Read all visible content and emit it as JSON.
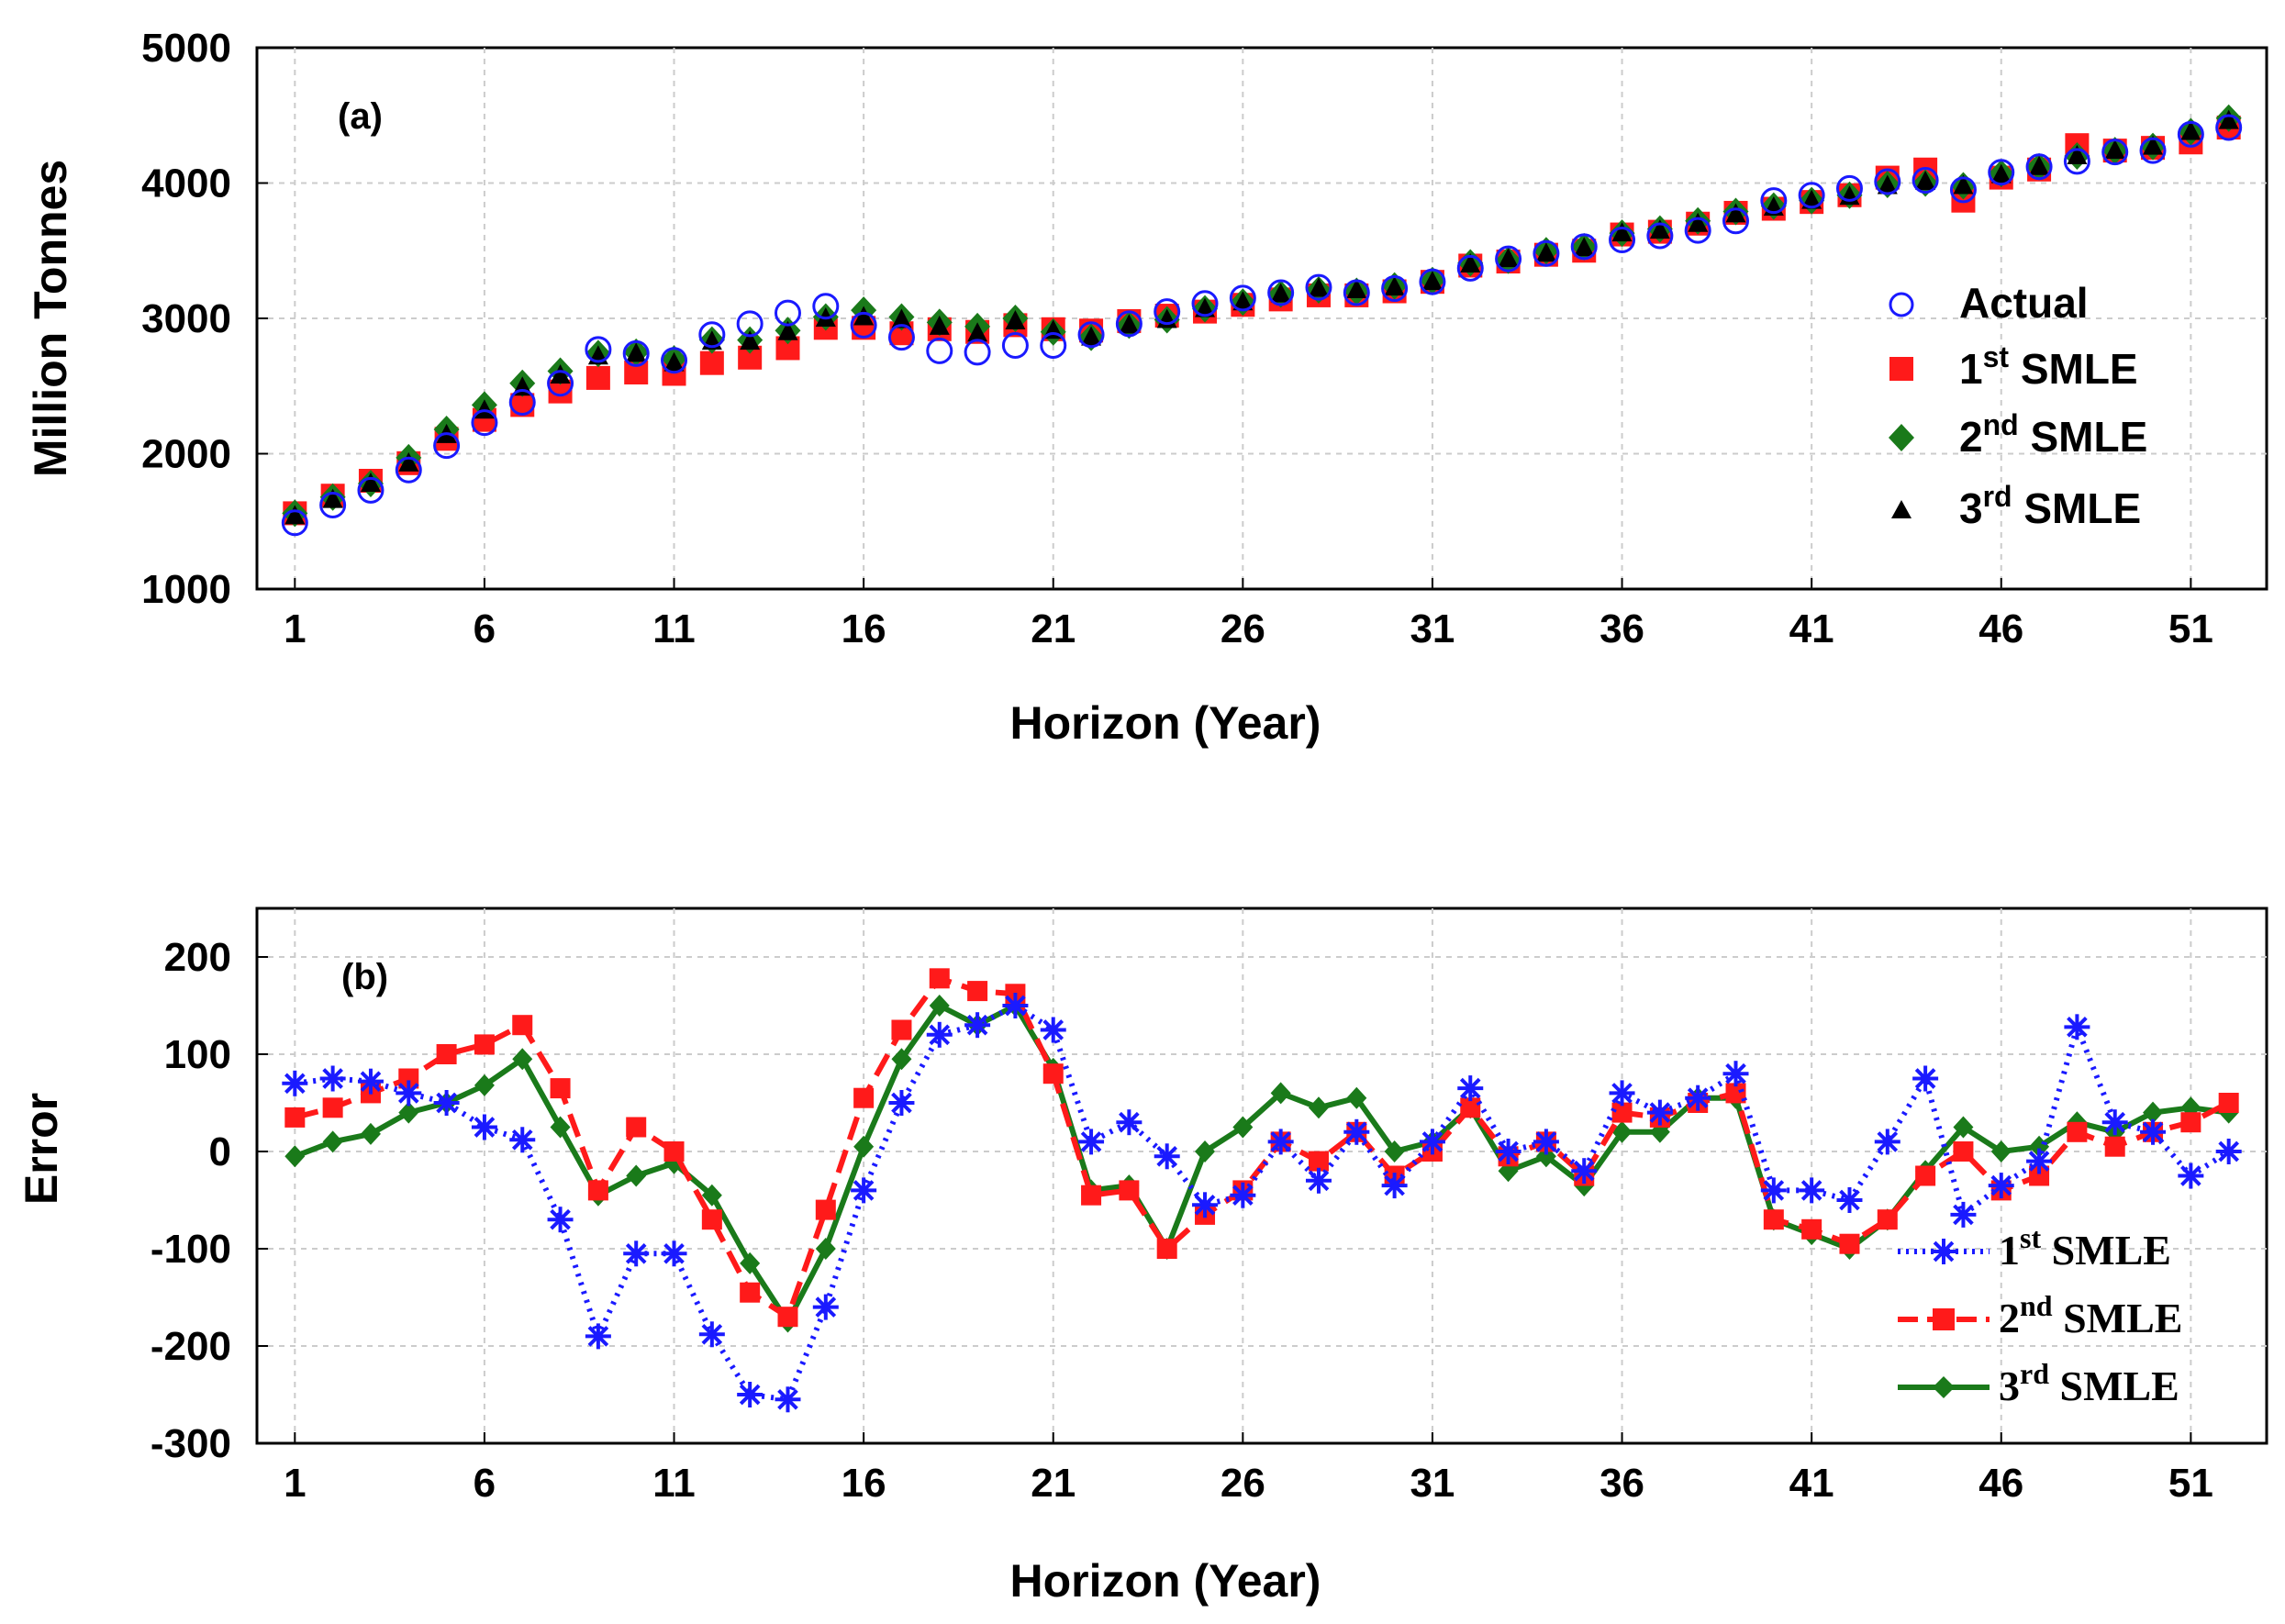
{
  "colors": {
    "actual": "#1a1aff",
    "s1": "#ff1a1a",
    "s2": "#1a7a1a",
    "s3": "#000000",
    "b1": "#1a1aff",
    "b2": "#ff1a1a",
    "b3": "#1a7a1a",
    "grid": "#cccccc"
  },
  "chart_data": [
    {
      "type": "scatter",
      "panel_label": "(a)",
      "xlabel": "Horizon (Year)",
      "ylabel": "Million Tonnes",
      "xlim": [
        0,
        53
      ],
      "ylim": [
        1000,
        5000
      ],
      "xticks": [
        "1",
        "6",
        "11",
        "16",
        "21",
        "26",
        "31",
        "36",
        "41",
        "46",
        "51"
      ],
      "yticks": [
        "5000",
        "4000",
        "3000",
        "2000",
        "1000"
      ],
      "grid": true,
      "legend_position": "right",
      "legend": [
        {
          "marker": "circle",
          "base": "Actual",
          "sup": ""
        },
        {
          "marker": "square",
          "base": "1",
          "sup": "st",
          "suffix": " SMLE"
        },
        {
          "marker": "diamond",
          "base": "2",
          "sup": "nd",
          "suffix": " SMLE"
        },
        {
          "marker": "triangle",
          "base": "3",
          "sup": "rd",
          "suffix": " SMLE"
        }
      ],
      "series": [
        {
          "name": "Actual",
          "values": [
            1490,
            1620,
            1730,
            1880,
            2060,
            2230,
            2380,
            2520,
            2770,
            2740,
            2690,
            2880,
            2960,
            3040,
            3090,
            2950,
            2860,
            2760,
            2750,
            2800,
            2800,
            2880,
            2960,
            3050,
            3110,
            3150,
            3190,
            3230,
            3190,
            3220,
            3270,
            3370,
            3440,
            3480,
            3530,
            3580,
            3610,
            3650,
            3720,
            3870,
            3910,
            3960,
            4010,
            4020,
            3950,
            4080,
            4120,
            4160,
            4230,
            4240,
            4360,
            4410
          ]
        },
        {
          "name": "1st SMLE",
          "values": [
            1560,
            1690,
            1800,
            1930,
            2110,
            2250,
            2360,
            2460,
            2560,
            2600,
            2590,
            2670,
            2710,
            2780,
            2930,
            2930,
            2890,
            2920,
            2900,
            2950,
            2920,
            2910,
            2980,
            3020,
            3050,
            3100,
            3140,
            3170,
            3170,
            3200,
            3270,
            3390,
            3420,
            3470,
            3500,
            3620,
            3640,
            3700,
            3780,
            3810,
            3860,
            3910,
            4040,
            4100,
            3870,
            4040,
            4100,
            4280,
            4240,
            4260,
            4300,
            4410
          ]
        },
        {
          "name": "2nd SMLE",
          "values": [
            1560,
            1680,
            1780,
            1970,
            2180,
            2360,
            2520,
            2610,
            2740,
            2750,
            2700,
            2840,
            2840,
            2910,
            3010,
            3060,
            3010,
            2970,
            2940,
            3000,
            2900,
            2860,
            2950,
            2990,
            3070,
            3120,
            3180,
            3210,
            3200,
            3240,
            3280,
            3410,
            3430,
            3500,
            3530,
            3630,
            3660,
            3720,
            3790,
            3830,
            3870,
            3910,
            3990,
            4000,
            3980,
            4070,
            4120,
            4200,
            4240,
            4270,
            4380,
            4480
          ]
        },
        {
          "name": "3rd SMLE",
          "values": [
            1540,
            1660,
            1780,
            1930,
            2140,
            2320,
            2490,
            2580,
            2720,
            2740,
            2670,
            2830,
            2830,
            2900,
            3000,
            3010,
            2990,
            2940,
            2890,
            2980,
            2910,
            2860,
            2950,
            2990,
            3070,
            3120,
            3180,
            3220,
            3210,
            3230,
            3270,
            3400,
            3440,
            3480,
            3520,
            3630,
            3650,
            3700,
            3770,
            3820,
            3870,
            3900,
            3980,
            4010,
            3980,
            4060,
            4120,
            4200,
            4240,
            4270,
            4380,
            4460
          ]
        }
      ]
    },
    {
      "type": "line",
      "panel_label": "(b)",
      "xlabel": "Horizon (Year)",
      "ylabel": "Error",
      "xlim": [
        0,
        53
      ],
      "ylim": [
        -300,
        250
      ],
      "xticks": [
        "1",
        "6",
        "11",
        "16",
        "21",
        "26",
        "31",
        "36",
        "41",
        "46",
        "51"
      ],
      "yticks": [
        "200",
        "100",
        "0",
        "-100",
        "-200",
        "-300"
      ],
      "grid": true,
      "legend_position": "lower-right",
      "legend": [
        {
          "marker": "asterisk",
          "base": "1",
          "sup": "st",
          "suffix": " SMLE"
        },
        {
          "marker": "square",
          "base": "2",
          "sup": "nd",
          "suffix": " SMLE"
        },
        {
          "marker": "diamond",
          "base": "3",
          "sup": "rd",
          "suffix": " SMLE"
        }
      ],
      "series": [
        {
          "name": "1st SMLE",
          "values": [
            70,
            75,
            72,
            60,
            50,
            25,
            12,
            -70,
            -190,
            -105,
            -105,
            -188,
            -250,
            -255,
            -160,
            -40,
            50,
            120,
            130,
            150,
            125,
            10,
            30,
            -5,
            -55,
            -45,
            10,
            -30,
            20,
            -35,
            10,
            65,
            0,
            10,
            -20,
            60,
            40,
            55,
            80,
            -40,
            -40,
            -50,
            10,
            75,
            -65,
            -35,
            -10,
            128,
            30,
            20,
            -25,
            0
          ]
        },
        {
          "name": "2nd SMLE",
          "values": [
            35,
            45,
            60,
            75,
            100,
            110,
            130,
            65,
            -40,
            25,
            0,
            -70,
            -145,
            -170,
            -60,
            55,
            125,
            178,
            165,
            162,
            80,
            -45,
            -40,
            -100,
            -65,
            -40,
            10,
            -10,
            20,
            -25,
            0,
            45,
            -5,
            10,
            -25,
            40,
            35,
            50,
            60,
            -70,
            -80,
            -95,
            -70,
            -25,
            0,
            -40,
            -25,
            20,
            5,
            20,
            30,
            50
          ]
        },
        {
          "name": "3rd SMLE",
          "values": [
            -5,
            10,
            18,
            40,
            50,
            68,
            95,
            25,
            -45,
            -25,
            -12,
            -45,
            -115,
            -175,
            -100,
            5,
            95,
            150,
            130,
            150,
            85,
            -40,
            -35,
            -100,
            0,
            25,
            60,
            45,
            55,
            0,
            10,
            45,
            -20,
            -5,
            -35,
            20,
            20,
            55,
            55,
            -70,
            -85,
            -100,
            -70,
            -20,
            25,
            0,
            5,
            30,
            20,
            40,
            45,
            40
          ]
        }
      ]
    }
  ]
}
